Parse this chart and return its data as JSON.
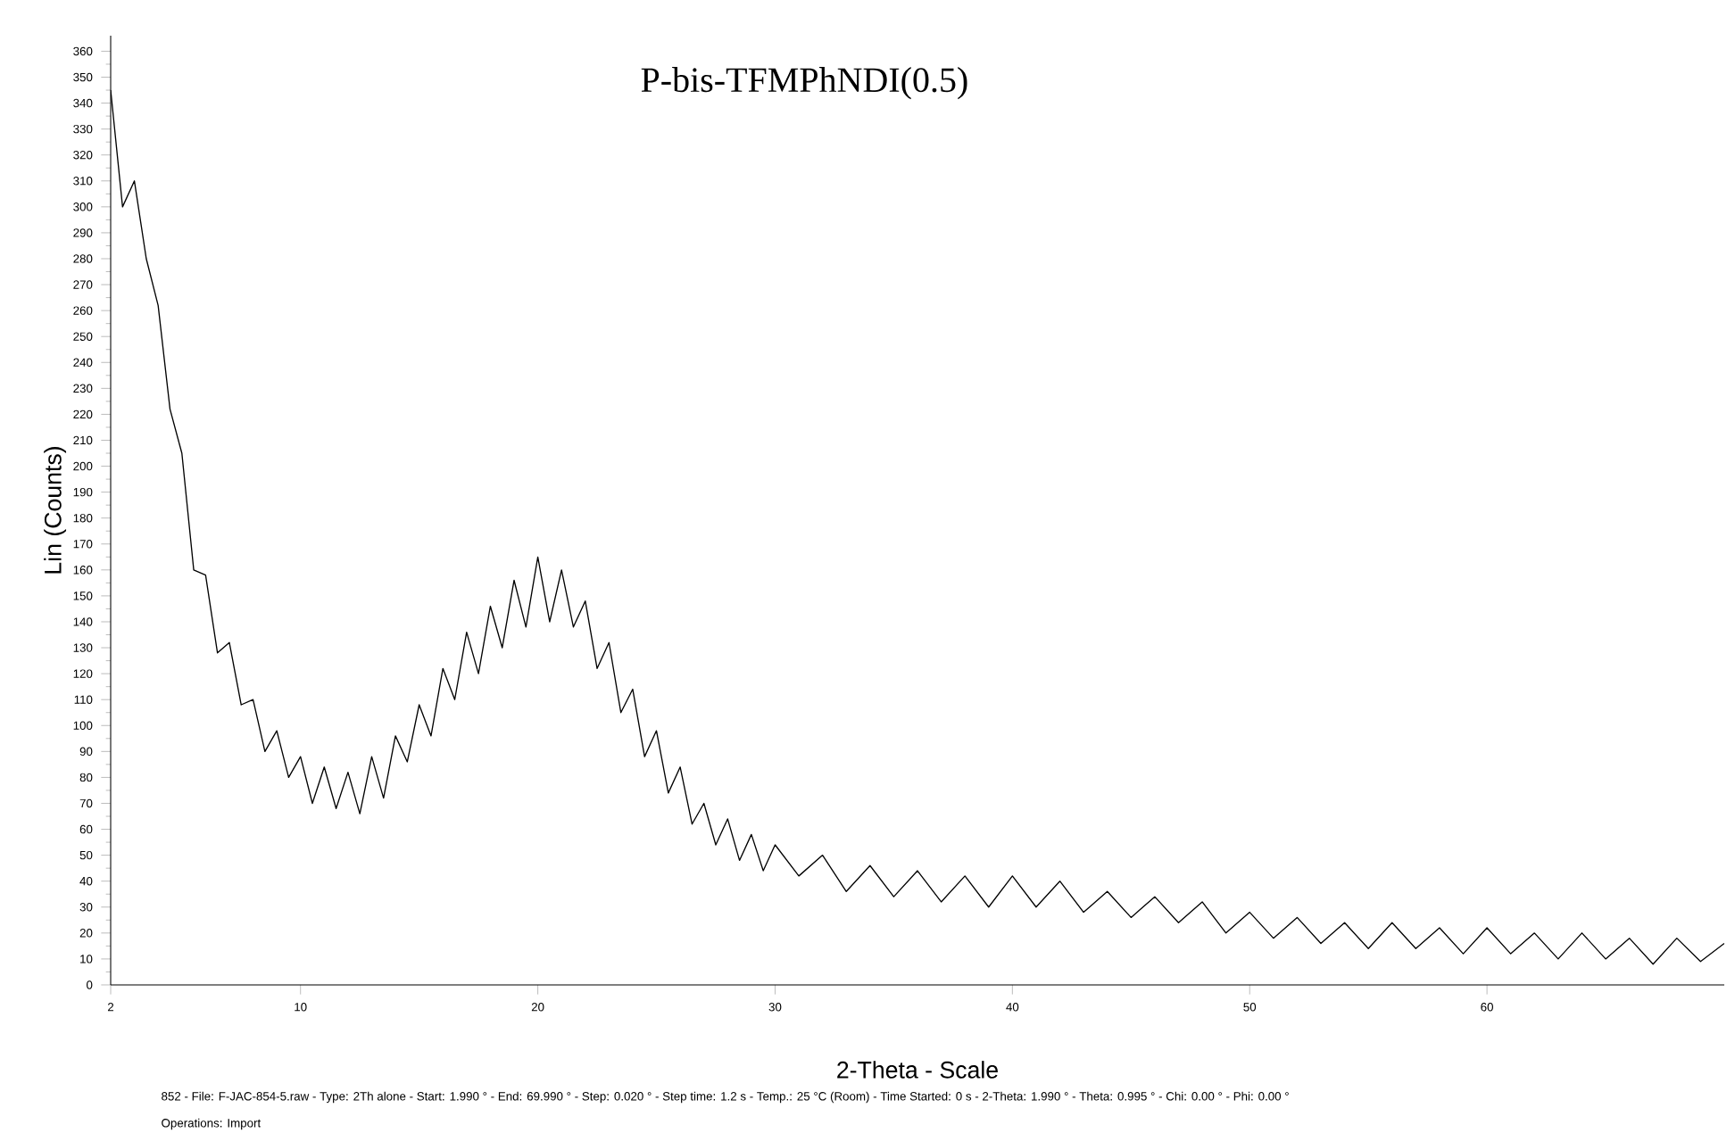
{
  "chart_data": {
    "type": "line",
    "title": "P-bis-TFMPhNDI(0.5)",
    "xlabel": "2-Theta - Scale",
    "ylabel": "Lin (Counts)",
    "annotations": [
      "852 - File: F-JAC-854-5.raw - Type: 2Th alone - Start: 1.990 ° - End: 69.990 ° - Step: 0.020 ° - Step time: 1.2 s - Temp.: 25 °C (Room) - Time Started: 0 s - 2-Theta: 1.990 ° - Theta: 0.995 ° - Chi: 0.00 ° - Phi: 0.00 °",
      "Operations: Import"
    ],
    "xlim": [
      2,
      70
    ],
    "ylim": [
      0,
      366
    ],
    "xticks": [
      2,
      10,
      20,
      30,
      40,
      50,
      60
    ],
    "yticks": [
      0,
      10,
      20,
      30,
      40,
      50,
      60,
      70,
      80,
      90,
      100,
      110,
      120,
      130,
      140,
      150,
      160,
      170,
      180,
      190,
      200,
      210,
      220,
      230,
      240,
      250,
      260,
      270,
      280,
      290,
      300,
      310,
      320,
      330,
      340,
      350,
      360
    ],
    "marker": "none",
    "line_style": "solid",
    "series": [
      {
        "color": "#000000",
        "x": [
          2.0,
          2.5,
          3.0,
          3.5,
          4.0,
          4.5,
          5.0,
          5.5,
          6.0,
          6.5,
          7.0,
          7.5,
          8.0,
          8.5,
          9.0,
          9.5,
          10.0,
          10.5,
          11.0,
          11.5,
          12.0,
          12.5,
          13.0,
          13.5,
          14.0,
          14.5,
          15.0,
          15.5,
          16.0,
          16.5,
          17.0,
          17.5,
          18.0,
          18.5,
          19.0,
          19.5,
          20.0,
          20.5,
          21.0,
          21.5,
          22.0,
          22.5,
          23.0,
          23.5,
          24.0,
          24.5,
          25.0,
          25.5,
          26.0,
          26.5,
          27.0,
          27.5,
          28.0,
          28.5,
          29.0,
          29.5,
          30,
          31,
          32,
          33,
          34,
          35,
          36,
          37,
          38,
          39,
          40,
          41,
          42,
          43,
          44,
          45,
          46,
          47,
          48,
          49,
          50,
          51,
          52,
          53,
          54,
          55,
          56,
          57,
          58,
          59,
          60,
          61,
          62,
          63,
          64,
          65,
          66,
          67,
          68,
          69,
          70
        ],
        "values": [
          345,
          300,
          310,
          280,
          262,
          222,
          205,
          160,
          158,
          128,
          132,
          108,
          110,
          90,
          98,
          80,
          88,
          70,
          84,
          68,
          82,
          66,
          88,
          72,
          96,
          86,
          108,
          96,
          122,
          110,
          136,
          120,
          146,
          130,
          156,
          138,
          165,
          140,
          160,
          138,
          148,
          122,
          132,
          105,
          114,
          88,
          98,
          74,
          84,
          62,
          70,
          54,
          64,
          48,
          58,
          44,
          54,
          42,
          50,
          36,
          46,
          34,
          44,
          32,
          42,
          30,
          42,
          30,
          40,
          28,
          36,
          26,
          34,
          24,
          32,
          20,
          28,
          18,
          26,
          16,
          24,
          14,
          24,
          14,
          22,
          12,
          22,
          12,
          20,
          10,
          20,
          10,
          18,
          8,
          18,
          9,
          16
        ]
      }
    ]
  }
}
